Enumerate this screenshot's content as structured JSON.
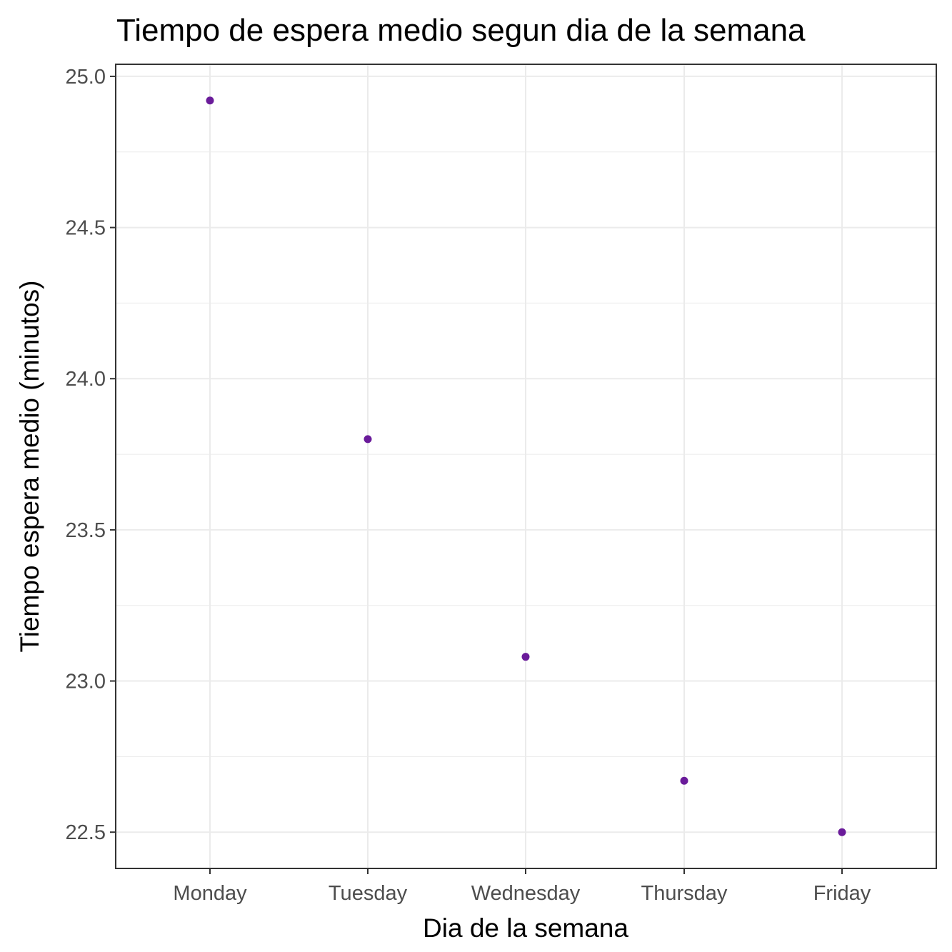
{
  "chart_data": {
    "type": "scatter",
    "title": "Tiempo de espera medio segun dia de la semana",
    "xlabel": "Dia de la semana",
    "ylabel": "Tiempo espera medio (minutos)",
    "categories": [
      "Monday",
      "Tuesday",
      "Wednesday",
      "Thursday",
      "Friday"
    ],
    "values": [
      24.92,
      23.8,
      23.08,
      22.67,
      22.5
    ],
    "ylim": [
      22.38,
      25.04
    ],
    "yticks": [
      22.5,
      23.0,
      23.5,
      24.0,
      24.5,
      25.0
    ],
    "ytick_labels": [
      "22.5",
      "23.0",
      "23.5",
      "24.0",
      "24.5",
      "25.0"
    ],
    "grid": true,
    "legend": "none",
    "point_color": "#6a1b9a"
  }
}
